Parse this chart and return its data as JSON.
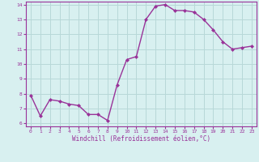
{
  "x": [
    0,
    1,
    2,
    3,
    4,
    5,
    6,
    7,
    8,
    9,
    10,
    11,
    12,
    13,
    14,
    15,
    16,
    17,
    18,
    19,
    20,
    21,
    22,
    23
  ],
  "y": [
    7.9,
    6.5,
    7.6,
    7.5,
    7.3,
    7.2,
    6.6,
    6.6,
    6.2,
    8.6,
    10.3,
    10.5,
    13.0,
    13.9,
    14.0,
    13.6,
    13.6,
    13.5,
    13.0,
    12.3,
    11.5,
    11.0,
    11.1,
    11.2
  ],
  "line_color": "#993399",
  "marker": "D",
  "marker_size": 2.0,
  "bg_color": "#d8f0f0",
  "grid_color": "#b8d8d8",
  "xlabel": "Windchill (Refroidissement éolien,°C)",
  "xlabel_color": "#993399",
  "tick_color": "#993399",
  "ylim": [
    6,
    14
  ],
  "xlim": [
    -0.5,
    23.5
  ],
  "yticks": [
    6,
    7,
    8,
    9,
    10,
    11,
    12,
    13,
    14
  ],
  "xticks": [
    0,
    1,
    2,
    3,
    4,
    5,
    6,
    7,
    8,
    9,
    10,
    11,
    12,
    13,
    14,
    15,
    16,
    17,
    18,
    19,
    20,
    21,
    22,
    23
  ],
  "linewidth": 1.0,
  "spine_color": "#993399"
}
